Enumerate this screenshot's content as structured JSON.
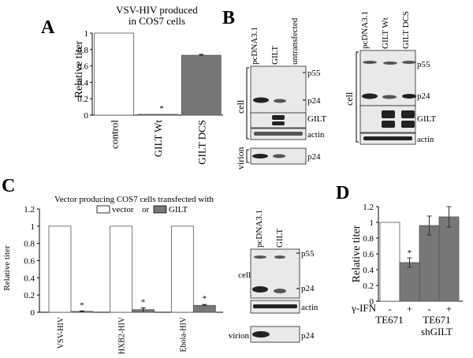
{
  "figure": {
    "panels": {
      "A": {
        "letter": "A",
        "title_line1": "VSV-HIV produced",
        "title_line2": "in COS7 cells",
        "ylabel": "Relative titer",
        "yticks": [
          "0",
          "0.2",
          "0.4",
          "0.6",
          "0.8",
          "1"
        ],
        "categories": [
          "control",
          "GILT Wt",
          "GILT DCS"
        ],
        "significance": [
          "",
          "*",
          ""
        ]
      },
      "B": {
        "letter": "B",
        "left_lanes": [
          "pcDNA3.1",
          "GILT",
          "untransfected"
        ],
        "right_lanes": [
          "pcDNA3.1",
          "GILT Wt",
          "GILT DCS"
        ],
        "side_labels": [
          "cell",
          "virion"
        ],
        "band_labels": [
          "p55",
          "p24",
          "GILT",
          "actin",
          "p24"
        ]
      },
      "C": {
        "letter": "C",
        "title": "Vector producing COS7 cells transfected with",
        "legend": [
          "vector",
          "or",
          "GILT"
        ],
        "ylabel": "Relative titer",
        "yticks": [
          "0",
          "0.2",
          "0.4",
          "0.6",
          "0.8",
          "1",
          "1.2"
        ],
        "categories": [
          "VSV-HIV",
          "HXB2-HIV",
          "Ebola-HIV"
        ],
        "significance": [
          "*",
          "*",
          "*"
        ],
        "blot_lanes": [
          "pcDNA3.1",
          "GILT"
        ],
        "side_labels": [
          "cell",
          "virion"
        ],
        "band_labels": [
          "p55",
          "p24",
          "actin",
          "p24"
        ]
      },
      "D": {
        "letter": "D",
        "ylabel": "Relative titer",
        "yticks": [
          "0",
          "0.2",
          "0.4",
          "0.6",
          "0.8",
          "1",
          "1.2"
        ],
        "treatment_label": "γ-IFN",
        "treatments": [
          "-",
          "+",
          "-",
          "+"
        ],
        "groups": [
          "TE671",
          "TE671",
          "shGILT"
        ],
        "significance": [
          "",
          "*",
          "",
          ""
        ]
      }
    }
  },
  "chart_data": [
    {
      "type": "bar",
      "panel": "A",
      "title": "VSV-HIV produced in COS7 cells",
      "categories": [
        "control",
        "GILT Wt",
        "GILT DCS"
      ],
      "values": [
        1.0,
        0.01,
        0.73
      ],
      "errors": [
        0,
        0,
        0.01
      ],
      "colors": [
        "#ffffff",
        "#777777",
        "#777777"
      ],
      "ylabel": "Relative titer",
      "ylim": [
        0,
        1
      ]
    },
    {
      "type": "bar",
      "panel": "C",
      "title": "Vector producing COS7 cells transfected with",
      "categories": [
        "VSV-HIV",
        "HXB2-HIV",
        "Ebola-HIV"
      ],
      "series": [
        {
          "name": "vector",
          "values": [
            1.0,
            1.0,
            1.0
          ],
          "errors": [
            0,
            0,
            0
          ],
          "color": "#ffffff"
        },
        {
          "name": "GILT",
          "values": [
            0.01,
            0.03,
            0.08
          ],
          "errors": [
            0.005,
            0.02,
            0.01
          ],
          "color": "#777777"
        }
      ],
      "ylabel": "Relative titer",
      "ylim": [
        0,
        1.2
      ]
    },
    {
      "type": "bar",
      "panel": "D",
      "categories": [
        "TE671 -",
        "TE671 +",
        "TE671 shGILT -",
        "TE671 shGILT +"
      ],
      "values": [
        1.0,
        0.49,
        0.96,
        1.07
      ],
      "errors": [
        0,
        0.06,
        0.12,
        0.13
      ],
      "colors": [
        "#ffffff",
        "#777777",
        "#777777",
        "#777777"
      ],
      "ylabel": "Relative titer",
      "ylim": [
        0,
        1.2
      ]
    }
  ]
}
